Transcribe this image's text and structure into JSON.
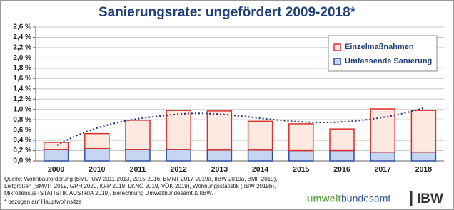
{
  "chart_data": {
    "type": "stacked_bar",
    "title": "Sanierungsrate: ungefördert 2009-2018*",
    "categories": [
      "2009",
      "2010",
      "2011",
      "2012",
      "2013",
      "2014",
      "2015",
      "2016",
      "2017",
      "2018"
    ],
    "series": [
      {
        "name": "Umfassende Sanierung",
        "color": "#2f4fa2",
        "fill": "#c6d5f2",
        "values": [
          0.22,
          0.24,
          0.22,
          0.22,
          0.21,
          0.21,
          0.2,
          0.2,
          0.17,
          0.17
        ]
      },
      {
        "name": "Einzelmaßnahmen",
        "color": "#d9302a",
        "fill": "#fde9e0",
        "values": [
          0.14,
          0.29,
          0.57,
          0.76,
          0.76,
          0.56,
          0.52,
          0.42,
          0.84,
          0.81
        ]
      }
    ],
    "ylim": [
      0,
      2.6
    ],
    "yticks": [
      {
        "value": 0,
        "label": "0,0 %"
      },
      {
        "value": 0.2,
        "label": "0,2 %"
      },
      {
        "value": 0.4,
        "label": "0,4 %"
      },
      {
        "value": 0.6,
        "label": "0,6 %"
      },
      {
        "value": 0.8,
        "label": "0,8 %"
      },
      {
        "value": 1.0,
        "label": "1,0 %"
      },
      {
        "value": 1.2,
        "label": "1,2 %"
      },
      {
        "value": 1.4,
        "label": "1,4 %"
      },
      {
        "value": 1.6,
        "label": "1,6 %"
      },
      {
        "value": 1.8,
        "label": "1,8 %"
      },
      {
        "value": 2.0,
        "label": "2,0 %"
      },
      {
        "value": 2.2,
        "label": "2,2 %"
      },
      {
        "value": 2.4,
        "label": "2,4 %"
      },
      {
        "value": 2.6,
        "label": "2,6 %"
      }
    ],
    "grid": true,
    "source": [
      "Quelle: Wohnbauförderung (BMLFUW 2011-2013, 2015-2016, BMNT 2017-2019a, IIBW 2019a, BMF 2019),",
      "Leitgrößen (BMVIT 2019, GPH 2020, KFP 2019, LKNÖ 2019, VÖK 2019), Wohnungsstatistik (IIBW 2019b),",
      "Mikrozensus (STATISTIK AUSTRIA 2019), Berechnung Umweltbundesamt & IIBW."
    ],
    "footnote": "* bezogen auf Hauptwohnsitze",
    "logo_left": [
      "umwelt",
      "bundesamt"
    ],
    "logo_right": "IBW"
  }
}
